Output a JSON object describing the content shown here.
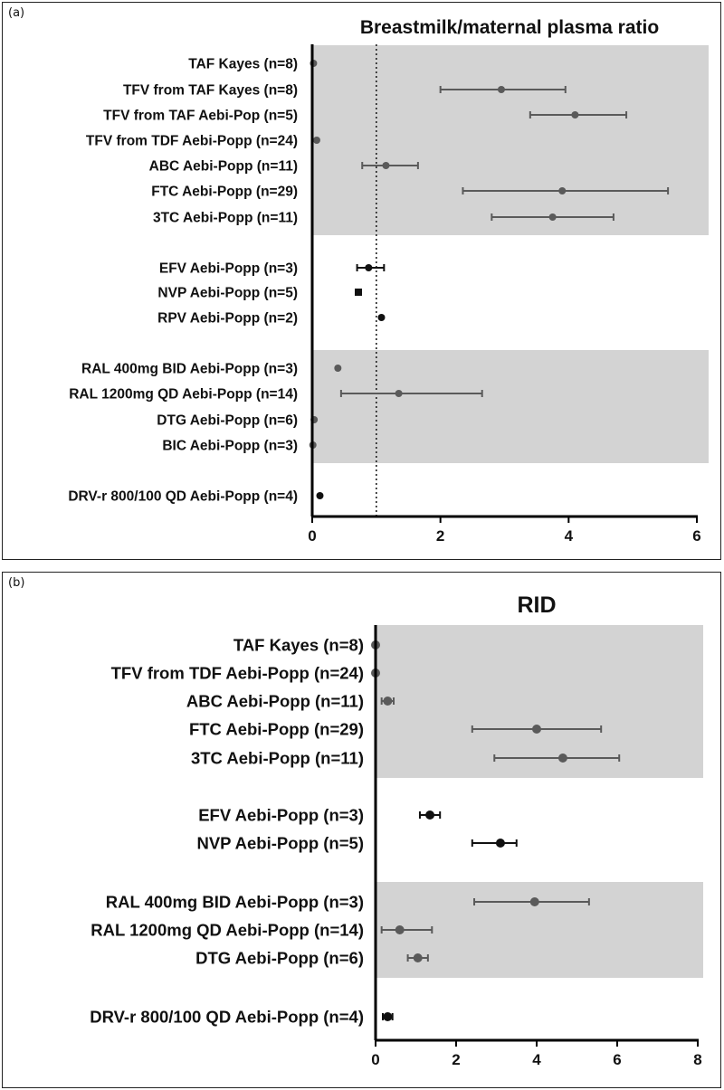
{
  "chart_data": [
    {
      "type": "forest",
      "panel_label": "(a)",
      "title": "Breastmilk/maternal plasma ratio",
      "xlim": [
        0,
        6
      ],
      "xticks": [
        0,
        2,
        4,
        6
      ],
      "reference_line": 1,
      "shaded_groups": [
        [
          0,
          6
        ],
        [
          10,
          13
        ]
      ],
      "rows": [
        {
          "label": "TAF Kayes (n=8)",
          "value": 0.02,
          "low": null,
          "high": null,
          "group": 0,
          "marker": "circle"
        },
        {
          "label": "TFV from TAF Kayes (n=8)",
          "value": 2.95,
          "low": 2.0,
          "high": 3.95,
          "group": 0,
          "marker": "circle"
        },
        {
          "label": "TFV from TAF Aebi-Pop (n=5)",
          "value": 4.1,
          "low": 3.4,
          "high": 4.9,
          "group": 0,
          "marker": "circle"
        },
        {
          "label": "TFV from TDF Aebi-Popp (n=24)",
          "value": 0.07,
          "low": null,
          "high": null,
          "group": 0,
          "marker": "circle"
        },
        {
          "label": "ABC Aebi-Popp (n=11)",
          "value": 1.15,
          "low": 0.78,
          "high": 1.65,
          "group": 0,
          "marker": "circle"
        },
        {
          "label": "FTC Aebi-Popp (n=29)",
          "value": 3.9,
          "low": 2.35,
          "high": 5.55,
          "group": 0,
          "marker": "circle"
        },
        {
          "label": "3TC Aebi-Popp (n=11)",
          "value": 3.75,
          "low": 2.8,
          "high": 4.7,
          "group": 0,
          "marker": "circle"
        },
        {
          "label": "EFV Aebi-Popp (n=3)",
          "value": 0.88,
          "low": 0.7,
          "high": 1.12,
          "group": 1,
          "marker": "circle"
        },
        {
          "label": "NVP Aebi-Popp (n=5)",
          "value": 0.72,
          "low": null,
          "high": null,
          "group": 1,
          "marker": "square"
        },
        {
          "label": "RPV Aebi-Popp (n=2)",
          "value": 1.08,
          "low": null,
          "high": null,
          "group": 1,
          "marker": "circle"
        },
        {
          "label": "RAL 400mg BID Aebi-Popp (n=3)",
          "value": 0.4,
          "low": null,
          "high": null,
          "group": 2,
          "marker": "circle"
        },
        {
          "label": "RAL 1200mg QD Aebi-Popp (n=14)",
          "value": 1.35,
          "low": 0.45,
          "high": 2.65,
          "group": 2,
          "marker": "circle"
        },
        {
          "label": "DTG Aebi-Popp (n=6)",
          "value": 0.03,
          "low": null,
          "high": null,
          "group": 2,
          "marker": "circle"
        },
        {
          "label": "BIC Aebi-Popp (n=3)",
          "value": 0.01,
          "low": null,
          "high": null,
          "group": 2,
          "marker": "circle"
        },
        {
          "label": "DRV-r 800/100 QD Aebi-Popp (n=4)",
          "value": 0.12,
          "low": null,
          "high": null,
          "group": 3,
          "marker": "circle"
        }
      ]
    },
    {
      "type": "forest",
      "panel_label": "(b)",
      "title": "RID",
      "xlim": [
        0,
        8
      ],
      "xticks": [
        0,
        2,
        4,
        6,
        8
      ],
      "reference_line": null,
      "shaded_groups": [
        [
          0,
          4
        ],
        [
          7,
          9
        ]
      ],
      "rows": [
        {
          "label": "TAF Kayes (n=8)",
          "value": 0.0,
          "low": null,
          "high": null,
          "group": 0,
          "marker": "circle"
        },
        {
          "label": "TFV from TDF Aebi-Popp (n=24)",
          "value": 0.0,
          "low": null,
          "high": null,
          "group": 0,
          "marker": "circle"
        },
        {
          "label": "ABC Aebi-Popp (n=11)",
          "value": 0.3,
          "low": 0.15,
          "high": 0.45,
          "group": 0,
          "marker": "circle"
        },
        {
          "label": "FTC Aebi-Popp (n=29)",
          "value": 4.0,
          "low": 2.4,
          "high": 5.6,
          "group": 0,
          "marker": "circle"
        },
        {
          "label": "3TC Aebi-Popp (n=11)",
          "value": 4.65,
          "low": 2.95,
          "high": 6.05,
          "group": 0,
          "marker": "circle"
        },
        {
          "label": "EFV Aebi-Popp (n=3)",
          "value": 1.35,
          "low": 1.1,
          "high": 1.6,
          "group": 1,
          "marker": "circle"
        },
        {
          "label": "NVP Aebi-Popp (n=5)",
          "value": 3.1,
          "low": 2.4,
          "high": 3.5,
          "group": 1,
          "marker": "circle"
        },
        {
          "label": "RAL 400mg BID Aebi-Popp (n=3)",
          "value": 3.95,
          "low": 2.45,
          "high": 5.3,
          "group": 2,
          "marker": "circle"
        },
        {
          "label": "RAL 1200mg QD Aebi-Popp (n=14)",
          "value": 0.6,
          "low": 0.15,
          "high": 1.4,
          "group": 2,
          "marker": "circle"
        },
        {
          "label": "DTG Aebi-Popp (n=6)",
          "value": 1.05,
          "low": 0.8,
          "high": 1.3,
          "group": 2,
          "marker": "circle"
        },
        {
          "label": "DRV-r 800/100 QD Aebi-Popp (n=4)",
          "value": 0.3,
          "low": 0.18,
          "high": 0.42,
          "group": 3,
          "marker": "circle"
        }
      ]
    }
  ],
  "colors": {
    "shade": "#d3d3d3",
    "shaded_marker": "#5a5a5a",
    "plain_marker": "#111111",
    "axis": "#000000"
  }
}
